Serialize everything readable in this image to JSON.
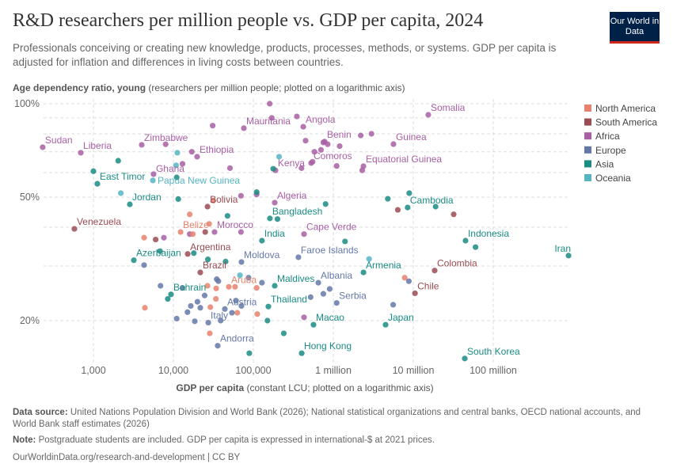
{
  "header": {
    "title": "R&D researchers per million people vs. GDP per capita, 2024",
    "subtitle": "Professionals conceiving or creating new knowledge, products, processes, methods, or systems. GDP per capita is adjusted for inflation and differences in living costs between countries.",
    "logo": "Our World in Data"
  },
  "chart_data": {
    "type": "scatter",
    "title": "R&D researchers per million people vs. GDP per capita, 2024",
    "ylabel_bold": "Age dependency ratio, young",
    "ylabel_rest": " (researchers per million people; plotted on a logarithmic axis)",
    "xlabel_bold": "GDP per capita",
    "xlabel_rest": " (constant LCU; plotted on a logarithmic axis)",
    "x_scale": "log",
    "y_scale": "log",
    "xlim": [
      100,
      1000000000
    ],
    "ylim": [
      15,
      100
    ],
    "grid": true,
    "x_ticks": [
      {
        "v": 1000,
        "label": "1,000"
      },
      {
        "v": 10000,
        "label": "10,000"
      },
      {
        "v": 100000,
        "label": "100,000"
      },
      {
        "v": 1000000,
        "label": "1 million"
      },
      {
        "v": 10000000,
        "label": "10 million"
      },
      {
        "v": 100000000,
        "label": "100 million"
      }
    ],
    "y_ticks": [
      {
        "v": 100,
        "label": "100%"
      },
      {
        "v": 50,
        "label": "50%"
      },
      {
        "v": 20,
        "label": "20%"
      }
    ],
    "y_minor_grid": [
      90,
      80,
      70,
      60,
      40,
      30
    ],
    "legend_position": "right",
    "legend": [
      {
        "name": "North America",
        "color": "#E6826D"
      },
      {
        "name": "South America",
        "color": "#9B4B52"
      },
      {
        "name": "Africa",
        "color": "#A85FA4"
      },
      {
        "name": "Europe",
        "color": "#6478A8"
      },
      {
        "name": "Asia",
        "color": "#1A8C84"
      },
      {
        "name": "Oceania",
        "color": "#55B5C3"
      }
    ],
    "points": [
      {
        "x": 232,
        "y": 72.4,
        "c": "Africa",
        "label": "Sudan"
      },
      {
        "x": 695,
        "y": 69.5,
        "c": "Africa",
        "label": "Liberia"
      },
      {
        "x": 4018,
        "y": 73.7,
        "c": "Africa",
        "label": "Zimbabwe"
      },
      {
        "x": 19800,
        "y": 67.5,
        "c": "Africa",
        "label": "Ethiopia"
      },
      {
        "x": 5650,
        "y": 59.3,
        "c": "Africa",
        "label": "Ghana"
      },
      {
        "x": 1120,
        "y": 55.2,
        "c": "Asia",
        "label": "East Timor"
      },
      {
        "x": 5530,
        "y": 56.6,
        "c": "Oceania",
        "label": "Papua New Guinea"
      },
      {
        "x": 2850,
        "y": 47.4,
        "c": "Asia",
        "label": "Jordan"
      },
      {
        "x": 578,
        "y": 39.5,
        "c": "South America",
        "label": "Venezuela"
      },
      {
        "x": 26700,
        "y": 46.6,
        "c": "South America",
        "label": "Bolivia"
      },
      {
        "x": 12300,
        "y": 38.6,
        "c": "North America",
        "label": "Belize"
      },
      {
        "x": 32700,
        "y": 38.6,
        "c": "Africa",
        "label": "Morocco"
      },
      {
        "x": 76000,
        "y": 83.4,
        "c": "Africa",
        "label": "Mauritania"
      },
      {
        "x": 421000,
        "y": 84.3,
        "c": "Africa",
        "label": "Angola"
      },
      {
        "x": 15400000,
        "y": 92.1,
        "c": "Africa",
        "label": "Somalia"
      },
      {
        "x": 778000,
        "y": 75.5,
        "c": "Africa",
        "label": "Benin"
      },
      {
        "x": 5650000,
        "y": 74.1,
        "c": "Africa",
        "label": "Guinea"
      },
      {
        "x": 528000,
        "y": 64.4,
        "c": "Africa",
        "label": "Comoros"
      },
      {
        "x": 2380000,
        "y": 62.9,
        "c": "Africa",
        "label": "Equatorial Guinea"
      },
      {
        "x": 189000,
        "y": 61.0,
        "c": "Africa",
        "label": "Kenya"
      },
      {
        "x": 185000,
        "y": 48.0,
        "c": "Africa",
        "label": "Algeria"
      },
      {
        "x": 161000,
        "y": 42.7,
        "c": "Asia",
        "label": "Bangladesh"
      },
      {
        "x": 128000,
        "y": 36.2,
        "c": "Asia",
        "label": "India"
      },
      {
        "x": 430000,
        "y": 38.0,
        "c": "Africa",
        "label": "Cape Verde"
      },
      {
        "x": 45000000,
        "y": 36.2,
        "c": "Asia",
        "label": "Indonesia"
      },
      {
        "x": 873000000,
        "y": 32.4,
        "c": "Asia",
        "label": "Iran"
      },
      {
        "x": 8500000,
        "y": 46.3,
        "c": "Asia",
        "label": "Cambodia"
      },
      {
        "x": 18500000,
        "y": 29.0,
        "c": "South America",
        "label": "Colombia"
      },
      {
        "x": 10500000,
        "y": 24.5,
        "c": "South America",
        "label": "Chile"
      },
      {
        "x": 4500000,
        "y": 19.4,
        "c": "Asia",
        "label": "Japan"
      },
      {
        "x": 44000000,
        "y": 15.1,
        "c": "Asia",
        "label": "South Korea"
      },
      {
        "x": 2380000,
        "y": 28.6,
        "c": "Asia",
        "label": "Armenia"
      },
      {
        "x": 649000,
        "y": 26.5,
        "c": "Europe",
        "label": "Albania"
      },
      {
        "x": 1100000,
        "y": 22.8,
        "c": "Europe",
        "label": "Serbia"
      },
      {
        "x": 565000,
        "y": 19.4,
        "c": "Asia",
        "label": "Macao"
      },
      {
        "x": 402000,
        "y": 15.7,
        "c": "Asia",
        "label": "Hong Kong"
      },
      {
        "x": 154000,
        "y": 22.2,
        "c": "Asia",
        "label": "Thailand"
      },
      {
        "x": 185000,
        "y": 25.9,
        "c": "Asia",
        "label": "Maldives"
      },
      {
        "x": 366000,
        "y": 32.0,
        "c": "Europe",
        "label": "Faroe Islands"
      },
      {
        "x": 71000,
        "y": 30.9,
        "c": "Europe",
        "label": "Moldova"
      },
      {
        "x": 49300,
        "y": 25.7,
        "c": "North America",
        "label": "Aruba"
      },
      {
        "x": 44000,
        "y": 21.8,
        "c": "Europe",
        "label": "Austria"
      },
      {
        "x": 27300,
        "y": 19.7,
        "c": "Europe",
        "label": "Italy"
      },
      {
        "x": 35800,
        "y": 16.6,
        "c": "Europe",
        "label": "Andorra"
      },
      {
        "x": 9330,
        "y": 24.3,
        "c": "Asia",
        "label": "Bahrain"
      },
      {
        "x": 21700,
        "y": 28.6,
        "c": "South America",
        "label": "Brazil"
      },
      {
        "x": 15100,
        "y": 32.8,
        "c": "South America",
        "label": "Argentina"
      },
      {
        "x": 3200,
        "y": 31.3,
        "c": "Asia",
        "label": "Azerbaijan"
      },
      {
        "x": 160000,
        "y": 100,
        "c": "Africa"
      },
      {
        "x": 170000,
        "y": 90,
        "c": "Africa"
      },
      {
        "x": 350000,
        "y": 91,
        "c": "Africa"
      },
      {
        "x": 31000,
        "y": 85,
        "c": "Africa"
      },
      {
        "x": 450000,
        "y": 76,
        "c": "Africa"
      },
      {
        "x": 750000,
        "y": 75,
        "c": "Africa"
      },
      {
        "x": 850000,
        "y": 74,
        "c": "Africa"
      },
      {
        "x": 2200000,
        "y": 79,
        "c": "Africa"
      },
      {
        "x": 3000000,
        "y": 80,
        "c": "Africa"
      },
      {
        "x": 1200000,
        "y": 73,
        "c": "Africa"
      },
      {
        "x": 580000,
        "y": 70,
        "c": "Africa"
      },
      {
        "x": 700000,
        "y": 71,
        "c": "Africa"
      },
      {
        "x": 8000,
        "y": 74,
        "c": "Africa"
      },
      {
        "x": 17000,
        "y": 70,
        "c": "Africa"
      },
      {
        "x": 13000,
        "y": 64,
        "c": "Africa"
      },
      {
        "x": 51000,
        "y": 62,
        "c": "Africa"
      },
      {
        "x": 110000,
        "y": 51,
        "c": "Africa"
      },
      {
        "x": 70000,
        "y": 50.5,
        "c": "Africa"
      },
      {
        "x": 400000,
        "y": 62,
        "c": "Africa"
      },
      {
        "x": 550000,
        "y": 65,
        "c": "Africa"
      },
      {
        "x": 1100000,
        "y": 63,
        "c": "Africa"
      },
      {
        "x": 2300000,
        "y": 61,
        "c": "Africa"
      },
      {
        "x": 7600,
        "y": 37,
        "c": "Africa"
      },
      {
        "x": 16000,
        "y": 38,
        "c": "Africa"
      },
      {
        "x": 70000,
        "y": 38.6,
        "c": "Africa"
      },
      {
        "x": 430000,
        "y": 20.5,
        "c": "Africa"
      },
      {
        "x": 6000,
        "y": 36.5,
        "c": "South America"
      },
      {
        "x": 25000,
        "y": 38.6,
        "c": "South America"
      },
      {
        "x": 6400000,
        "y": 45.5,
        "c": "South America"
      },
      {
        "x": 32000000,
        "y": 44,
        "c": "South America"
      },
      {
        "x": 4300,
        "y": 37,
        "c": "North America"
      },
      {
        "x": 17500,
        "y": 38,
        "c": "North America"
      },
      {
        "x": 16000,
        "y": 44,
        "c": "North America"
      },
      {
        "x": 31500,
        "y": 48.7,
        "c": "North America"
      },
      {
        "x": 28000,
        "y": 41,
        "c": "North America"
      },
      {
        "x": 4400,
        "y": 22,
        "c": "North America"
      },
      {
        "x": 26700,
        "y": 25.9,
        "c": "North America"
      },
      {
        "x": 34300,
        "y": 25.4,
        "c": "North America"
      },
      {
        "x": 59000,
        "y": 25.7,
        "c": "North America"
      },
      {
        "x": 110000,
        "y": 25.5,
        "c": "North America"
      },
      {
        "x": 29000,
        "y": 22.1,
        "c": "North America"
      },
      {
        "x": 34000,
        "y": 23.5,
        "c": "North America"
      },
      {
        "x": 63000,
        "y": 21.2,
        "c": "North America"
      },
      {
        "x": 112000,
        "y": 21,
        "c": "North America"
      },
      {
        "x": 7800000,
        "y": 27.5,
        "c": "North America"
      },
      {
        "x": 28500,
        "y": 18.2,
        "c": "North America"
      },
      {
        "x": 4300,
        "y": 30.2,
        "c": "Europe"
      },
      {
        "x": 6900,
        "y": 25.9,
        "c": "Europe"
      },
      {
        "x": 13000,
        "y": 25.5,
        "c": "Europe"
      },
      {
        "x": 20000,
        "y": 23.0,
        "c": "Europe"
      },
      {
        "x": 16500,
        "y": 22.3,
        "c": "Europe"
      },
      {
        "x": 24600,
        "y": 24.1,
        "c": "Europe"
      },
      {
        "x": 34800,
        "y": 27.2,
        "c": "Europe"
      },
      {
        "x": 36500,
        "y": 26.8,
        "c": "Europe"
      },
      {
        "x": 60500,
        "y": 23.2,
        "c": "Europe"
      },
      {
        "x": 18500,
        "y": 19.9,
        "c": "Europe"
      },
      {
        "x": 21700,
        "y": 22,
        "c": "Europe"
      },
      {
        "x": 39000,
        "y": 20,
        "c": "Europe"
      },
      {
        "x": 54000,
        "y": 21.2,
        "c": "Europe"
      },
      {
        "x": 71000,
        "y": 22.3,
        "c": "Europe"
      },
      {
        "x": 87000,
        "y": 27.5,
        "c": "Europe"
      },
      {
        "x": 128000,
        "y": 26.5,
        "c": "Europe"
      },
      {
        "x": 520000,
        "y": 23.8,
        "c": "Europe"
      },
      {
        "x": 750000,
        "y": 24.4,
        "c": "Europe"
      },
      {
        "x": 900000,
        "y": 25.3,
        "c": "Europe"
      },
      {
        "x": 5600000,
        "y": 22.5,
        "c": "Europe"
      },
      {
        "x": 8800000,
        "y": 26.8,
        "c": "Europe"
      },
      {
        "x": 11000,
        "y": 20.3,
        "c": "Europe"
      },
      {
        "x": 15000,
        "y": 21.3,
        "c": "Europe"
      },
      {
        "x": 1000,
        "y": 60.6,
        "c": "Asia"
      },
      {
        "x": 2040,
        "y": 65.5,
        "c": "Asia"
      },
      {
        "x": 11000,
        "y": 57.9,
        "c": "Asia"
      },
      {
        "x": 11500,
        "y": 49.3,
        "c": "Asia"
      },
      {
        "x": 18000,
        "y": 33,
        "c": "Asia"
      },
      {
        "x": 45000,
        "y": 31,
        "c": "Asia"
      },
      {
        "x": 47500,
        "y": 43.5,
        "c": "Asia"
      },
      {
        "x": 110000,
        "y": 51.9,
        "c": "Asia"
      },
      {
        "x": 200000,
        "y": 42.5,
        "c": "Asia"
      },
      {
        "x": 800000,
        "y": 47.5,
        "c": "Asia"
      },
      {
        "x": 177000,
        "y": 61.7,
        "c": "Asia"
      },
      {
        "x": 1400000,
        "y": 36.0,
        "c": "Asia"
      },
      {
        "x": 4800000,
        "y": 49.4,
        "c": "Asia"
      },
      {
        "x": 8900000,
        "y": 51.5,
        "c": "Asia"
      },
      {
        "x": 19000000,
        "y": 46.6,
        "c": "Asia"
      },
      {
        "x": 60000000,
        "y": 34.5,
        "c": "Asia"
      },
      {
        "x": 8500,
        "y": 23.5,
        "c": "Asia"
      },
      {
        "x": 89000,
        "y": 15.7,
        "c": "Asia"
      },
      {
        "x": 240000,
        "y": 18.2,
        "c": "Asia"
      },
      {
        "x": 150000,
        "y": 20,
        "c": "Asia"
      },
      {
        "x": 6800,
        "y": 33.5,
        "c": "Asia"
      },
      {
        "x": 27000,
        "y": 31.5,
        "c": "Asia"
      },
      {
        "x": 11200,
        "y": 69.5,
        "c": "Oceania"
      },
      {
        "x": 10800,
        "y": 63.3,
        "c": "Oceania"
      },
      {
        "x": 2200,
        "y": 51.5,
        "c": "Oceania"
      },
      {
        "x": 210000,
        "y": 67.5,
        "c": "Oceania"
      },
      {
        "x": 68000,
        "y": 28,
        "c": "Oceania"
      },
      {
        "x": 2800000,
        "y": 31.6,
        "c": "Oceania"
      }
    ]
  },
  "footer": {
    "source_label": "Data source:",
    "source_text": " United Nations Population Division and World Bank (2026); National statistical organizations and central banks, OECD national accounts, and World Bank staff estimates (2026)",
    "note_label": "Note:",
    "note_text": " Postgraduate students are included. GDP per capita is expressed in international-$ at 2021 prices.",
    "url": "OurWorldinData.org/research-and-development | CC BY"
  }
}
